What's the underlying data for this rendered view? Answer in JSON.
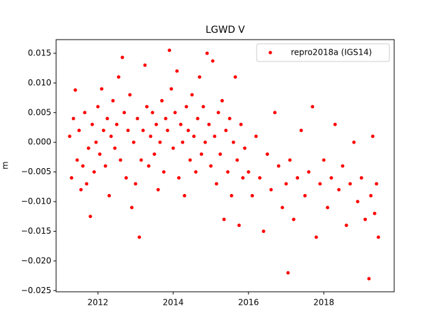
{
  "chart_data": {
    "type": "scatter",
    "title": "LGWD V",
    "y_label": "m",
    "xlim": [
      2010.89,
      2019.87
    ],
    "xticks": [
      2012,
      2014,
      2016,
      2018
    ],
    "ylim": [
      -0.0252,
      0.0173
    ],
    "yticks": [
      {
        "value": -0.025,
        "label": "−0.025"
      },
      {
        "value": -0.02,
        "label": "−0.020"
      },
      {
        "value": -0.015,
        "label": "−0.015"
      },
      {
        "value": -0.01,
        "label": "−0.010"
      },
      {
        "value": -0.005,
        "label": "−0.005"
      },
      {
        "value": 0,
        "label": "0.000"
      },
      {
        "value": 0.005,
        "label": "0.005"
      },
      {
        "value": 0.01,
        "label": "0.010"
      },
      {
        "value": 0.015,
        "label": "0.015"
      }
    ],
    "legend": "upper right",
    "series": [
      {
        "name": "repro2018a (IGS14)",
        "color": "#ff0000",
        "x": [
          2011.25,
          2011.3,
          2011.35,
          2011.4,
          2011.45,
          2011.5,
          2011.55,
          2011.6,
          2011.65,
          2011.7,
          2011.75,
          2011.8,
          2011.85,
          2011.9,
          2011.95,
          2012.0,
          2012.05,
          2012.1,
          2012.15,
          2012.2,
          2012.25,
          2012.3,
          2012.35,
          2012.4,
          2012.45,
          2012.5,
          2012.55,
          2012.6,
          2012.65,
          2012.7,
          2012.75,
          2012.8,
          2012.85,
          2012.9,
          2012.95,
          2013.0,
          2013.05,
          2013.1,
          2013.15,
          2013.2,
          2013.25,
          2013.3,
          2013.35,
          2013.4,
          2013.45,
          2013.5,
          2013.55,
          2013.6,
          2013.65,
          2013.7,
          2013.75,
          2013.8,
          2013.85,
          2013.9,
          2013.95,
          2014.0,
          2014.05,
          2014.1,
          2014.15,
          2014.2,
          2014.25,
          2014.3,
          2014.35,
          2014.4,
          2014.45,
          2014.5,
          2014.55,
          2014.6,
          2014.65,
          2014.7,
          2014.75,
          2014.8,
          2014.85,
          2014.9,
          2014.95,
          2015.0,
          2015.05,
          2015.1,
          2015.15,
          2015.2,
          2015.25,
          2015.3,
          2015.35,
          2015.4,
          2015.45,
          2015.5,
          2015.55,
          2015.6,
          2015.65,
          2015.7,
          2015.75,
          2015.8,
          2015.85,
          2015.9,
          2016.0,
          2016.1,
          2016.2,
          2016.3,
          2016.4,
          2016.5,
          2016.6,
          2016.7,
          2016.8,
          2016.9,
          2017.0,
          2017.05,
          2017.1,
          2017.2,
          2017.3,
          2017.4,
          2017.5,
          2017.6,
          2017.7,
          2017.8,
          2017.9,
          2018.0,
          2018.1,
          2018.2,
          2018.3,
          2018.4,
          2018.5,
          2018.6,
          2018.7,
          2018.8,
          2018.9,
          2019.0,
          2019.1,
          2019.2,
          2019.25,
          2019.3,
          2019.35,
          2019.4,
          2019.45
        ],
        "values": [
          0.001,
          -0.006,
          0.004,
          0.0088,
          -0.003,
          0.002,
          -0.008,
          -0.004,
          0.005,
          -0.007,
          -0.001,
          -0.0125,
          0.003,
          -0.005,
          0.0,
          0.006,
          -0.002,
          0.009,
          0.002,
          -0.004,
          0.004,
          -0.009,
          0.001,
          0.007,
          -0.001,
          0.003,
          0.011,
          -0.003,
          0.0143,
          0.005,
          -0.006,
          0.002,
          0.008,
          -0.011,
          0.0,
          -0.007,
          0.004,
          -0.016,
          -0.003,
          0.002,
          0.013,
          0.006,
          -0.004,
          0.001,
          0.005,
          -0.002,
          0.003,
          -0.008,
          0.0,
          0.007,
          -0.005,
          0.004,
          0.002,
          0.0155,
          0.009,
          -0.001,
          0.005,
          0.012,
          -0.006,
          0.003,
          0.0,
          -0.009,
          0.006,
          0.002,
          -0.003,
          0.008,
          0.001,
          -0.005,
          0.004,
          0.011,
          -0.002,
          0.006,
          0.0,
          0.015,
          0.003,
          -0.004,
          0.0137,
          0.001,
          -0.007,
          0.005,
          -0.002,
          0.007,
          -0.013,
          0.002,
          -0.005,
          0.004,
          -0.009,
          0.0,
          0.011,
          -0.003,
          -0.014,
          0.003,
          -0.006,
          -0.001,
          -0.005,
          -0.009,
          0.001,
          -0.006,
          -0.015,
          -0.002,
          -0.008,
          0.005,
          -0.004,
          -0.011,
          -0.007,
          -0.022,
          -0.003,
          -0.013,
          -0.006,
          0.002,
          -0.009,
          -0.005,
          0.006,
          -0.016,
          -0.007,
          -0.003,
          -0.011,
          -0.006,
          0.003,
          -0.008,
          -0.004,
          -0.014,
          -0.007,
          0.0,
          -0.01,
          -0.006,
          -0.013,
          -0.023,
          -0.009,
          0.001,
          -0.012,
          -0.007,
          -0.016
        ]
      }
    ]
  }
}
